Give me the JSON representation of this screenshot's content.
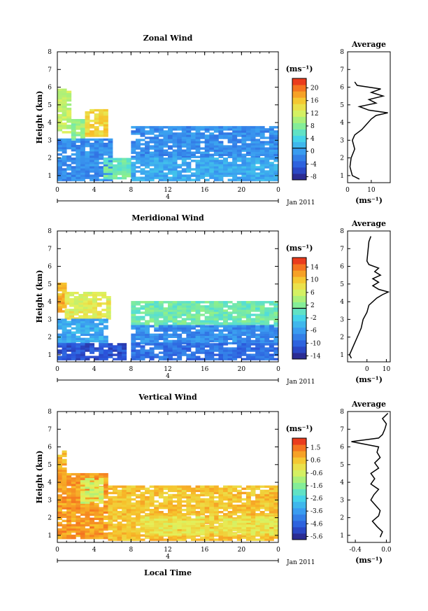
{
  "figure": {
    "date_label": "Jan 2011",
    "xlabel": "Local Time",
    "date_bar_label": "4"
  },
  "chart_data": [
    {
      "type": "heatmap",
      "title": "Zonal Wind",
      "ylabel": "Height (km)",
      "xticks": [
        "0",
        "4",
        "8",
        "12",
        "16",
        "20",
        "0"
      ],
      "yticks": [
        "1",
        "2",
        "3",
        "4",
        "5",
        "6",
        "7",
        "8"
      ],
      "xlim": [
        0,
        24
      ],
      "ylim": [
        0.6,
        8.0
      ],
      "colorbar": {
        "unit": "(ms⁻¹)",
        "min": -10,
        "max": 22,
        "ticks": [
          "20",
          "16",
          "12",
          "8",
          "4",
          "0",
          "-4",
          "-8"
        ],
        "zero_line": 0
      },
      "regions": [
        {
          "t0": 0.0,
          "t1": 1.5,
          "h0": 3.4,
          "h1": 5.9,
          "value": 10
        },
        {
          "t0": 1.5,
          "t1": 3.0,
          "h0": 3.0,
          "h1": 4.2,
          "value": 8
        },
        {
          "t0": 3.0,
          "t1": 5.3,
          "h0": 3.2,
          "h1": 4.7,
          "value": 14
        },
        {
          "t0": 0.0,
          "t1": 5.8,
          "h0": 0.7,
          "h1": 3.0,
          "value": -2
        },
        {
          "t0": 5.0,
          "t1": 8.0,
          "h0": 0.8,
          "h1": 1.9,
          "value": 6
        },
        {
          "t0": 8.0,
          "t1": 24.0,
          "h0": 2.0,
          "h1": 3.8,
          "value": -2
        },
        {
          "t0": 8.0,
          "t1": 24.0,
          "h0": 0.7,
          "h1": 2.0,
          "value": 0
        }
      ],
      "average": {
        "title": "Average",
        "xlabel": "(ms⁻¹)",
        "xticks": [
          "0",
          "10"
        ],
        "xlim": [
          0,
          18
        ],
        "height": [
          0.8,
          1.0,
          1.5,
          2.0,
          2.5,
          3.0,
          3.3,
          3.6,
          3.9,
          4.2,
          4.4,
          4.55,
          4.7,
          4.9,
          5.1,
          5.3,
          5.5,
          5.7,
          5.9,
          6.1,
          6.3
        ],
        "value": [
          5,
          2,
          1,
          1.5,
          3,
          2,
          3,
          6,
          8,
          10,
          12,
          17,
          9,
          5,
          12,
          9,
          15,
          10,
          14,
          4,
          3
        ]
      }
    },
    {
      "type": "heatmap",
      "title": "Meridional Wind",
      "ylabel": "Height (km)",
      "xticks": [
        "0",
        "4",
        "8",
        "12",
        "16",
        "20",
        "0"
      ],
      "yticks": [
        "1",
        "2",
        "3",
        "4",
        "5",
        "6",
        "7",
        "8"
      ],
      "xlim": [
        0,
        24
      ],
      "ylim": [
        0.6,
        8.0
      ],
      "colorbar": {
        "unit": "(ms⁻¹)",
        "min": -16,
        "max": 16,
        "ticks": [
          "14",
          "10",
          "6",
          "2",
          "-2",
          "-6",
          "-10",
          "-14"
        ],
        "zero_line": 0
      },
      "regions": [
        {
          "t0": 0.0,
          "t1": 0.8,
          "h0": 3.4,
          "h1": 5.2,
          "value": 10
        },
        {
          "t0": 0.8,
          "t1": 5.5,
          "h0": 3.0,
          "h1": 4.5,
          "value": 6
        },
        {
          "t0": 0.0,
          "t1": 5.5,
          "h0": 1.6,
          "h1": 3.0,
          "value": -6
        },
        {
          "t0": 0.0,
          "t1": 7.5,
          "h0": 0.7,
          "h1": 1.6,
          "value": -12
        },
        {
          "t0": 8.0,
          "t1": 24.0,
          "h0": 2.6,
          "h1": 4.0,
          "value": 0
        },
        {
          "t0": 8.0,
          "t1": 24.0,
          "h0": 1.6,
          "h1": 2.6,
          "value": -8
        },
        {
          "t0": 8.0,
          "t1": 24.0,
          "h0": 0.7,
          "h1": 1.6,
          "value": -10
        }
      ],
      "average": {
        "title": "Average",
        "xlabel": "(ms⁻¹)",
        "xticks": [
          "0",
          "10"
        ],
        "xlim": [
          -10,
          12
        ],
        "height": [
          0.8,
          1.0,
          1.5,
          2.0,
          2.5,
          3.0,
          3.4,
          3.8,
          4.2,
          4.4,
          4.55,
          4.7,
          4.9,
          5.1,
          5.3,
          5.5,
          5.7,
          5.9,
          6.1,
          6.3,
          7.4,
          7.7
        ],
        "value": [
          -8,
          -9,
          -7,
          -5,
          -3,
          -2,
          0,
          1,
          5,
          8,
          11,
          6,
          3,
          6,
          3,
          7,
          4,
          6,
          1,
          0,
          1,
          2
        ]
      }
    },
    {
      "type": "heatmap",
      "title": "Vertical Wind",
      "ylabel": "Height (km)",
      "xticks": [
        "0",
        "4",
        "8",
        "12",
        "16",
        "20",
        "0"
      ],
      "yticks": [
        "1",
        "2",
        "3",
        "4",
        "5",
        "6",
        "7",
        "8"
      ],
      "xlim": [
        0,
        24
      ],
      "ylim": [
        0.6,
        8.0
      ],
      "colorbar": {
        "unit": "(ms⁻¹)",
        "min": -6,
        "max": 2,
        "ticks": [
          "1.5",
          "0.6",
          "-0.6",
          "-1.6",
          "-2.6",
          "-3.6",
          "-4.6",
          "-5.6"
        ]
      },
      "regions": [
        {
          "t0": 0.0,
          "t1": 1.0,
          "h0": 4.0,
          "h1": 5.8,
          "value": 0.5
        },
        {
          "t0": 0.0,
          "t1": 5.5,
          "h0": 0.8,
          "h1": 4.5,
          "value": 0.8
        },
        {
          "t0": 2.5,
          "t1": 5.0,
          "h0": 2.8,
          "h1": 4.2,
          "value": -0.8
        },
        {
          "t0": 5.5,
          "t1": 24.0,
          "h0": 0.7,
          "h1": 3.8,
          "value": 0.3
        },
        {
          "t0": 9.0,
          "t1": 24.0,
          "h0": 1.0,
          "h1": 2.0,
          "value": -0.3
        }
      ],
      "average": {
        "title": "Average",
        "xlabel": "(ms⁻¹)",
        "xticks": [
          "-0.4",
          "0.0"
        ],
        "xlim": [
          -0.5,
          0.05
        ],
        "height": [
          0.9,
          1.2,
          1.5,
          1.8,
          2.1,
          2.4,
          2.7,
          3.0,
          3.3,
          3.6,
          3.9,
          4.2,
          4.5,
          4.8,
          5.1,
          5.4,
          5.7,
          6.0,
          6.3,
          6.5,
          6.7,
          7.0,
          7.3,
          7.6,
          7.9
        ],
        "value": [
          -0.08,
          -0.05,
          -0.12,
          -0.18,
          -0.1,
          -0.08,
          -0.14,
          -0.2,
          -0.16,
          -0.1,
          -0.2,
          -0.15,
          -0.2,
          -0.1,
          -0.15,
          -0.08,
          -0.12,
          -0.1,
          -0.45,
          -0.1,
          -0.05,
          -0.02,
          0.0,
          -0.05,
          0.02
        ]
      }
    }
  ]
}
